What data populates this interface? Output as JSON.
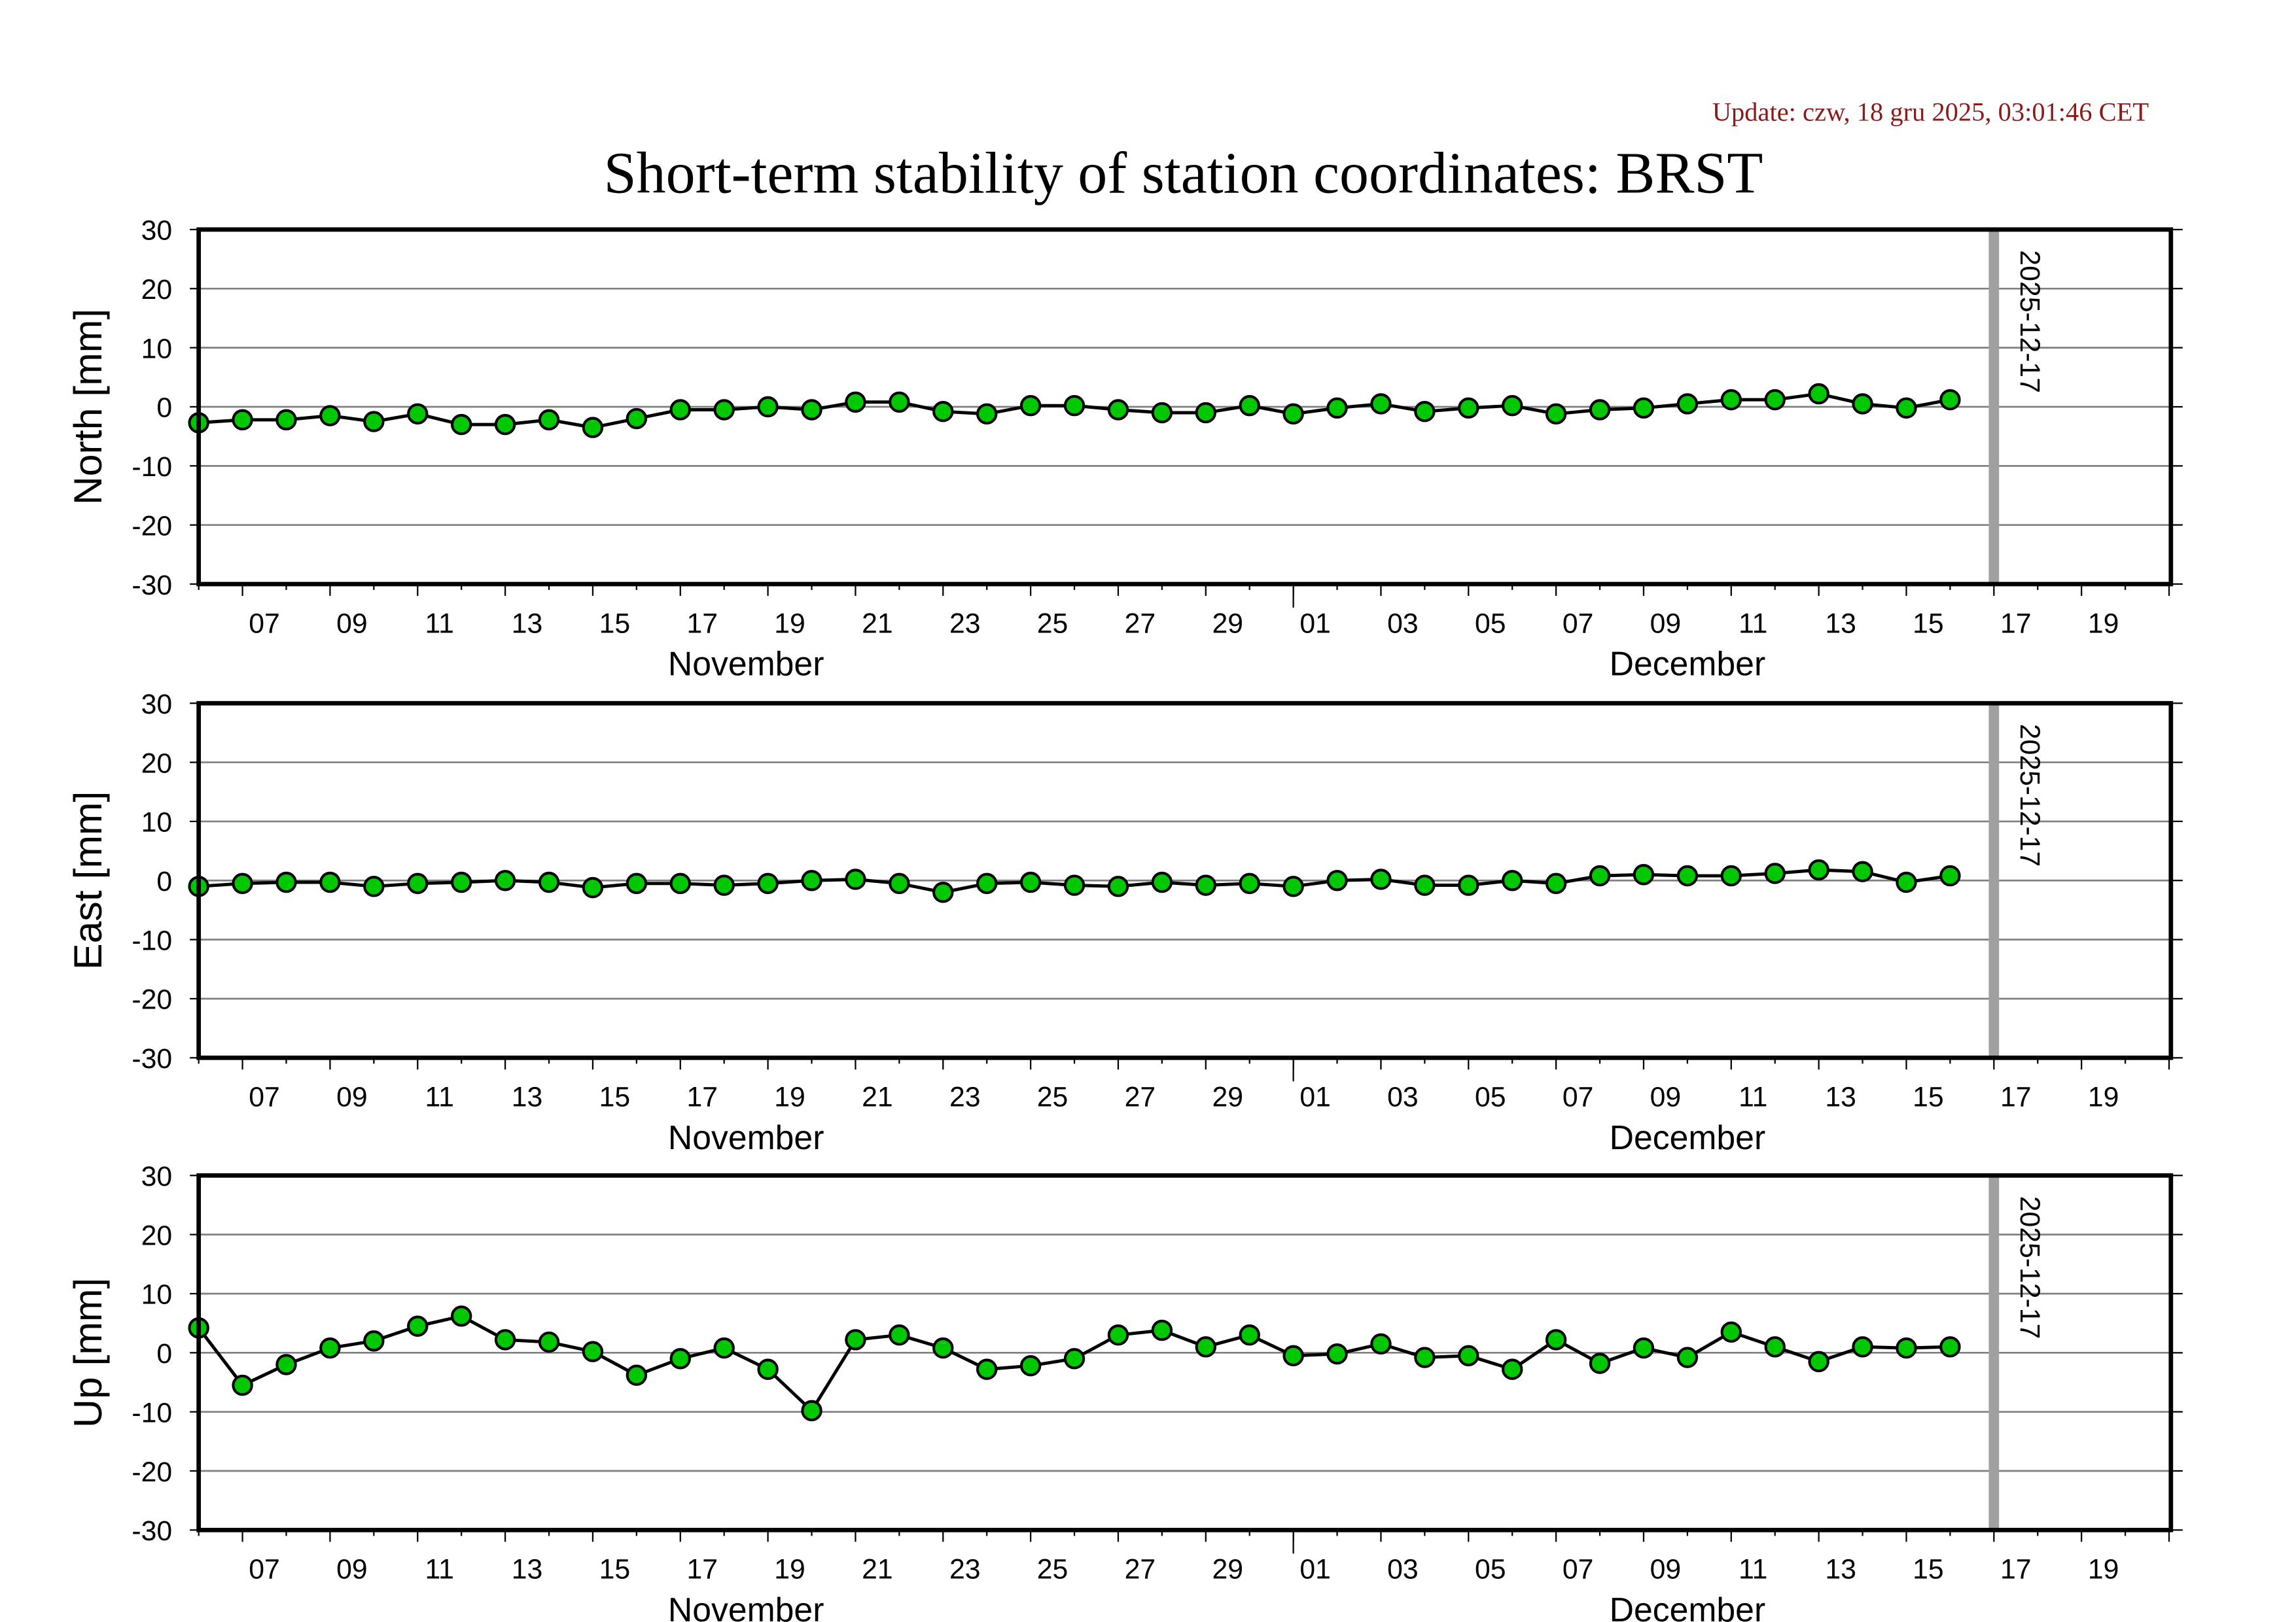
{
  "update_text": "Update: czw, 18 gru 2025, 03:01:46 CET",
  "colors": {
    "update": "#8b1a1a",
    "marker_fill": "#00c800",
    "marker_edge": "#000000",
    "grid": "#808080",
    "marker_line": "#a0a0a0"
  },
  "chart_data": {
    "type": "line",
    "title": "Short-term stability of station coordinates: BRST",
    "xlabel_months": [
      {
        "label": "November",
        "center_date": "2025-11-18T12:00"
      },
      {
        "label": "December",
        "center_date": "2025-12-10T00:00"
      }
    ],
    "x_range": [
      "2025-11-05T02:00",
      "2025-12-21T01:00"
    ],
    "ylim": [
      -30,
      30
    ],
    "y_ticks": [
      30,
      20,
      10,
      0,
      -10,
      -20,
      -30
    ],
    "y_tick_labels": [
      "30",
      "20",
      "10",
      "0",
      "-10",
      "-20",
      "-30"
    ],
    "grid": true,
    "x_ticks": [
      {
        "date": "2025-11-07",
        "label": "07"
      },
      {
        "date": "2025-11-09",
        "label": "09"
      },
      {
        "date": "2025-11-11",
        "label": "11"
      },
      {
        "date": "2025-11-13",
        "label": "13"
      },
      {
        "date": "2025-11-15",
        "label": "15"
      },
      {
        "date": "2025-11-17",
        "label": "17"
      },
      {
        "date": "2025-11-19",
        "label": "19"
      },
      {
        "date": "2025-11-21",
        "label": "21"
      },
      {
        "date": "2025-11-23",
        "label": "23"
      },
      {
        "date": "2025-11-25",
        "label": "25"
      },
      {
        "date": "2025-11-27",
        "label": "27"
      },
      {
        "date": "2025-11-29",
        "label": "29"
      },
      {
        "date": "2025-12-01",
        "label": "01"
      },
      {
        "date": "2025-12-03",
        "label": "03"
      },
      {
        "date": "2025-12-05",
        "label": "05"
      },
      {
        "date": "2025-12-07",
        "label": "07"
      },
      {
        "date": "2025-12-09",
        "label": "09"
      },
      {
        "date": "2025-12-11",
        "label": "11"
      },
      {
        "date": "2025-12-13",
        "label": "13"
      },
      {
        "date": "2025-12-15",
        "label": "15"
      },
      {
        "date": "2025-12-17",
        "label": "17"
      },
      {
        "date": "2025-12-19",
        "label": "19"
      }
    ],
    "marker": {
      "date": "2025-12-17",
      "label": "2025-12-17"
    },
    "x_start_date": "2025-11-06",
    "x_count": 41,
    "series": [
      {
        "name": "North",
        "ylabel": "North [mm]",
        "values": [
          -2.7,
          -2.2,
          -2.2,
          -1.5,
          -2.5,
          -1.2,
          -3,
          -3,
          -2.2,
          -3.5,
          -2,
          -0.5,
          -0.5,
          0,
          -0.5,
          0.8,
          0.8,
          -0.8,
          -1.2,
          0.2,
          0.2,
          -0.5,
          -1,
          -1,
          0.2,
          -1.2,
          -0.2,
          0.5,
          -0.8,
          -0.2,
          0.2,
          -1.2,
          -0.5,
          -0.2,
          0.5,
          1.2,
          1.2,
          2.2,
          0.5,
          -0.2,
          1.2
        ]
      },
      {
        "name": "East",
        "ylabel": "East [mm]",
        "values": [
          -1,
          -0.5,
          -0.3,
          -0.3,
          -1,
          -0.5,
          -0.3,
          0,
          -0.3,
          -1.2,
          -0.5,
          -0.5,
          -0.8,
          -0.5,
          0,
          0.2,
          -0.5,
          -2,
          -0.5,
          -0.3,
          -0.8,
          -1,
          -0.3,
          -0.8,
          -0.5,
          -1,
          0,
          0.2,
          -0.8,
          -0.8,
          0,
          -0.5,
          0.8,
          1,
          0.8,
          0.8,
          1.2,
          1.8,
          1.5,
          -0.3,
          0.8
        ]
      },
      {
        "name": "Up",
        "ylabel": "Up [mm]",
        "values": [
          4.2,
          -5.5,
          -2,
          0.8,
          2,
          4.5,
          6.2,
          2.2,
          1.8,
          0.2,
          -3.8,
          -1,
          0.8,
          -2.8,
          -9.8,
          2.2,
          3,
          0.8,
          -2.8,
          -2.2,
          -1,
          3,
          3.8,
          1,
          3,
          -0.5,
          -0.2,
          1.5,
          -0.8,
          -0.5,
          -2.8,
          2.2,
          -1.8,
          0.8,
          -0.8,
          3.5,
          1,
          -1.5,
          1,
          0.8,
          1
        ]
      }
    ]
  }
}
